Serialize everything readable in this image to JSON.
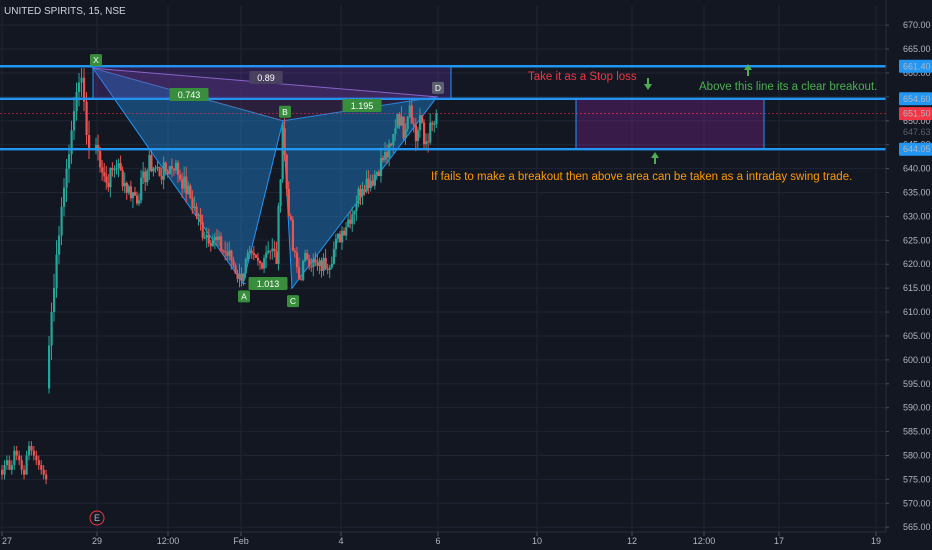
{
  "chart_data": {
    "type": "candlestick",
    "title": "UNITED SPIRITS, 15, NSE",
    "y_ticks": [
      565,
      570,
      575,
      580,
      585,
      590,
      595,
      600,
      605,
      610,
      615,
      620,
      625,
      630,
      635,
      640,
      645,
      650,
      655,
      660,
      665,
      670
    ],
    "ylim": [
      564,
      674
    ],
    "x_ticks": [
      "27",
      "29",
      "12:00",
      "Feb",
      "4",
      "6",
      "10",
      "12",
      "12:00",
      "17",
      "19"
    ],
    "horizontal_lines": [
      {
        "price": 661.4,
        "label": "661.40",
        "color": "#2196f3"
      },
      {
        "price": 654.6,
        "label": "654.60",
        "color": "#2196f3"
      },
      {
        "price": 644.05,
        "label": "644.05",
        "color": "#2196f3"
      }
    ],
    "last_price": {
      "price": 651.5,
      "label": "651.50",
      "color": "#f23645"
    },
    "hidden_label": "647.63",
    "pattern": {
      "points": [
        {
          "name": "X",
          "price": 661.0
        },
        {
          "name": "A",
          "price": 616.0
        },
        {
          "name": "B",
          "price": 650.0
        },
        {
          "name": "C",
          "price": 615.0
        },
        {
          "name": "D",
          "price": 655.0
        }
      ],
      "ratios": [
        "0.743",
        "1.013",
        "1.195",
        "0.89"
      ]
    },
    "annotations": [
      {
        "text": "Take it as a Stop loss",
        "color": "#f23645"
      },
      {
        "text": "Above this line its a clear breakout.",
        "color": "#4caf50"
      },
      {
        "text": "If fails to  make a breakout then above area can be taken as a intraday swing trade.",
        "color": "#ff9800"
      }
    ],
    "event_marker": "E",
    "candles_start": [
      [
        577,
        578,
        575,
        576
      ],
      [
        576,
        579,
        575,
        578
      ],
      [
        578,
        580,
        577,
        579
      ],
      [
        579,
        580,
        577,
        577
      ],
      [
        577,
        579,
        576,
        578
      ],
      [
        578,
        582,
        577,
        581
      ],
      [
        581,
        582,
        579,
        580
      ],
      [
        580,
        581,
        578,
        579
      ],
      [
        579,
        580,
        576,
        577
      ],
      [
        577,
        578,
        575,
        576
      ],
      [
        576,
        581,
        576,
        580
      ],
      [
        580,
        583,
        579,
        582
      ],
      [
        582,
        583,
        580,
        581
      ],
      [
        581,
        582,
        579,
        580
      ],
      [
        580,
        581,
        578,
        579
      ],
      [
        579,
        580,
        577,
        578
      ],
      [
        578,
        579,
        576,
        577
      ],
      [
        577,
        578,
        575,
        576
      ],
      [
        576,
        577,
        574,
        575
      ]
    ],
    "candles_gap": [
      [
        594,
        605,
        593,
        603
      ],
      [
        603,
        612,
        600,
        610
      ],
      [
        610,
        618,
        608,
        615
      ],
      [
        615,
        625,
        613,
        622
      ],
      [
        622,
        628,
        620,
        626
      ],
      [
        626,
        634,
        624,
        632
      ],
      [
        632,
        638,
        630,
        636
      ],
      [
        636,
        642,
        633,
        640
      ],
      [
        640,
        645,
        637,
        643
      ],
      [
        643,
        650,
        641,
        648
      ],
      [
        648,
        655,
        646,
        652
      ],
      [
        652,
        658,
        650,
        656
      ],
      [
        656,
        660,
        653,
        658
      ],
      [
        658,
        661,
        655,
        659
      ],
      [
        659,
        661,
        652,
        654
      ],
      [
        654,
        656,
        645,
        647
      ],
      [
        647,
        650,
        642,
        644
      ]
    ],
    "waypoints": [
      [
        0,
        645
      ],
      [
        5,
        637
      ],
      [
        10,
        641
      ],
      [
        15,
        636
      ],
      [
        20,
        634
      ],
      [
        26,
        641
      ],
      [
        32,
        639
      ],
      [
        38,
        641
      ],
      [
        46,
        634
      ],
      [
        52,
        627
      ],
      [
        58,
        625
      ],
      [
        66,
        621
      ],
      [
        70,
        617
      ],
      [
        74,
        621
      ],
      [
        80,
        620
      ],
      [
        84,
        624
      ],
      [
        88,
        621
      ],
      [
        91,
        649
      ],
      [
        93,
        636
      ],
      [
        96,
        623
      ],
      [
        99,
        617
      ],
      [
        103,
        622
      ],
      [
        108,
        619
      ],
      [
        114,
        621
      ],
      [
        120,
        627
      ],
      [
        125,
        631
      ],
      [
        130,
        637
      ],
      [
        135,
        638
      ],
      [
        140,
        642
      ],
      [
        144,
        644
      ],
      [
        147,
        652
      ],
      [
        150,
        648
      ],
      [
        153,
        654
      ],
      [
        156,
        646
      ],
      [
        158,
        651
      ],
      [
        160,
        645
      ],
      [
        163,
        648
      ],
      [
        166,
        650
      ]
    ]
  }
}
